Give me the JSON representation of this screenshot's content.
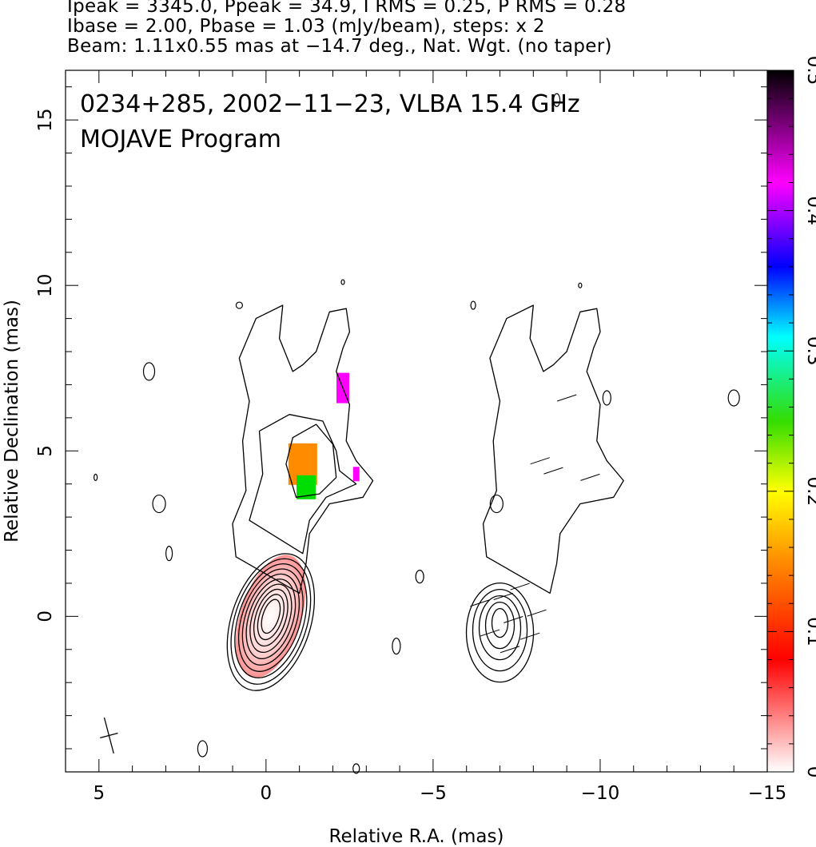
{
  "header": {
    "line1": "Ipeak = 3345.0, Ppeak = 34.9, I RMS = 0.25, P RMS = 0.28",
    "line2": "Ibase = 2.00, Pbase = 1.03 (mJy/beam), steps: x 2",
    "line3": "Beam: 1.11x0.55 mas at −14.7 deg., Nat. Wgt. (no taper)"
  },
  "chart_data": {
    "type": "heatmap",
    "title": "0234+285, 2002−11−23, VLBA 15.4 GHz",
    "subtitle": "MOJAVE Program",
    "xlabel": "Relative R.A. (mas)",
    "ylabel": "Relative Declination (mas)",
    "xlim": [
      6,
      -15
    ],
    "ylim": [
      -4.7,
      16.5
    ],
    "x_ticks": [
      5,
      0,
      -5,
      -10,
      -15
    ],
    "x_tick_labels": [
      "5",
      "0",
      "−5",
      "−10",
      "−15"
    ],
    "y_ticks": [
      0,
      5,
      10,
      15
    ],
    "y_tick_labels": [
      "0",
      "5",
      "10",
      "15"
    ],
    "colorbar": {
      "range": [
        0,
        0.5
      ],
      "ticks": [
        0,
        0.1,
        0.2,
        0.3,
        0.4,
        0.5
      ],
      "tick_labels": [
        "0",
        "0.1",
        "0.2",
        "0.3",
        "0.4",
        "0.5"
      ],
      "colors": [
        "#ffffff",
        "#ff0000",
        "#ff8c00",
        "#ffff00",
        "#00dd00",
        "#00ffff",
        "#0000ff",
        "#ff00ff",
        "#000000"
      ]
    },
    "peak_intensity_mJy_per_beam": 3345.0,
    "peak_polarized_mJy_per_beam": 34.9,
    "beam": {
      "major_mas": 1.11,
      "minor_mas": 0.55,
      "pa_deg": -14.7
    },
    "core_center": [
      0,
      0
    ],
    "shifted_panel_offset_ra": -7.5,
    "fractional_polarization_regions": [
      {
        "ra": -1.1,
        "dec": 4.6,
        "value": 0.11
      },
      {
        "ra": -1.2,
        "dec": 3.9,
        "value": 0.22
      },
      {
        "ra": -2.3,
        "dec": 6.9,
        "value": 0.43
      },
      {
        "ra": -2.7,
        "dec": 4.3,
        "value": 0.45
      },
      {
        "ra": 0.0,
        "dec": 0.0,
        "value": 0.04
      }
    ]
  }
}
